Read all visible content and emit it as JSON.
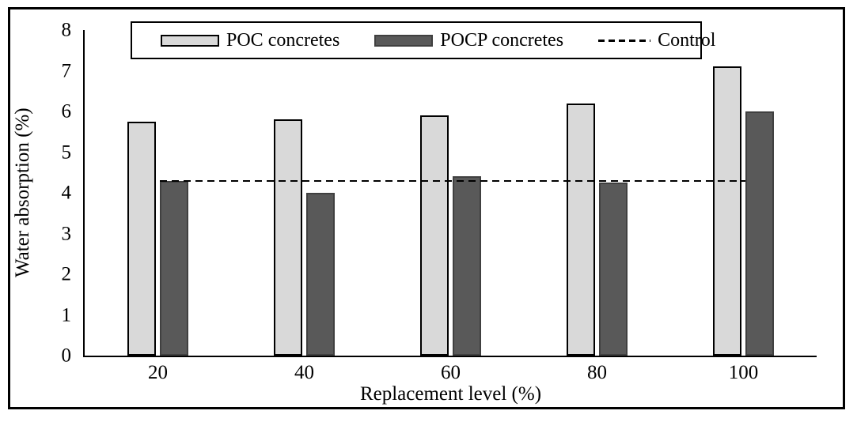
{
  "figure": {
    "background": "#ffffff",
    "frame_color": "#000000"
  },
  "chart_data": {
    "type": "bar",
    "title": "",
    "categories": [
      "20",
      "40",
      "60",
      "80",
      "100"
    ],
    "series": [
      {
        "name": "POC concretes",
        "values": [
          5.75,
          5.8,
          5.9,
          6.2,
          7.1
        ],
        "fill": "#d9d9d9",
        "border": "#000000"
      },
      {
        "name": "POCP concretes",
        "values": [
          4.3,
          4.0,
          4.4,
          4.25,
          6.0
        ],
        "fill": "#595959",
        "border": "#404040"
      }
    ],
    "control_line": {
      "name": "Control",
      "value": 4.3,
      "style": "dashed",
      "color": "#000000"
    },
    "xlabel": "Replacement level (%)",
    "ylabel": "Water absorption (%)",
    "ylim": [
      0,
      8
    ],
    "yticks": [
      0,
      1,
      2,
      3,
      4,
      5,
      6,
      7,
      8
    ],
    "grid": false,
    "legend_position": "top-center"
  }
}
